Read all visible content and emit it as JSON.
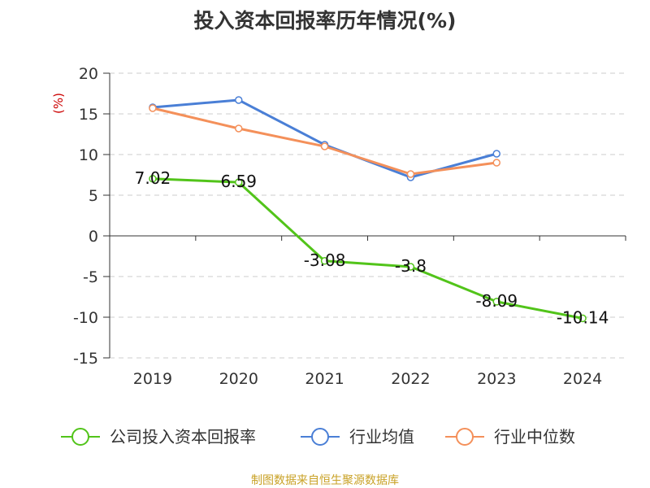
{
  "chart_data": {
    "type": "line",
    "title": "投入资本回报率历年情况(%)",
    "ylabel": "(%)",
    "categories": [
      "2019",
      "2020",
      "2021",
      "2022",
      "2023",
      "2024"
    ],
    "ylim": [
      -15,
      20
    ],
    "yticks": [
      20,
      15,
      10,
      5,
      0,
      -5,
      -10,
      -15
    ],
    "grid": true,
    "legend_position": "bottom",
    "series": [
      {
        "name": "公司投入资本回报率",
        "color": "#52c41a",
        "values": [
          7.02,
          6.59,
          -3.08,
          -3.8,
          -8.09,
          -10.14
        ],
        "labels": [
          "7.02",
          "6.59",
          "-3.08",
          "-3.8",
          "-8.09",
          "-10.14"
        ]
      },
      {
        "name": "行业均值",
        "color": "#4a7fd6",
        "values": [
          15.8,
          16.7,
          11.2,
          7.2,
          10.1,
          null
        ]
      },
      {
        "name": "行业中位数",
        "color": "#f4905a",
        "values": [
          15.7,
          13.2,
          11.0,
          7.6,
          9.0,
          null
        ]
      }
    ]
  },
  "source": "制图数据来自恒生聚源数据库"
}
